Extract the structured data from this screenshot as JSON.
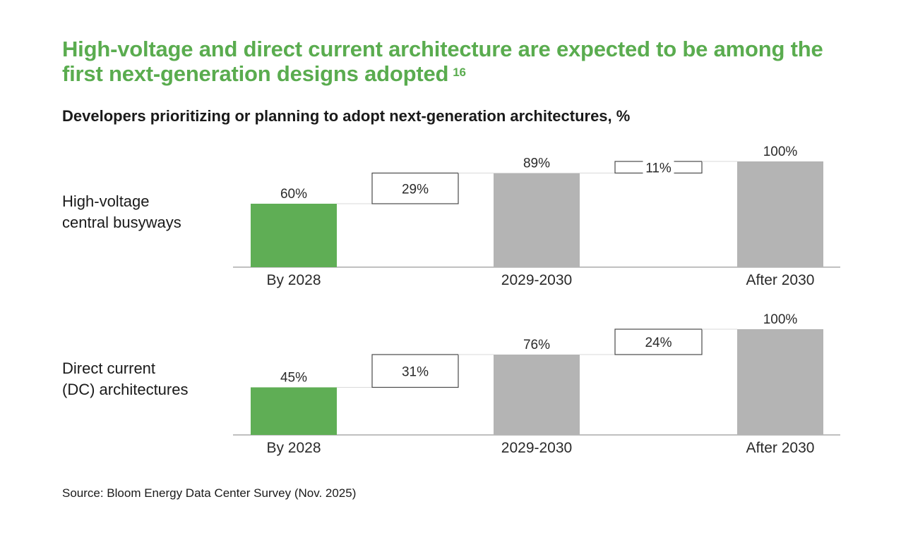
{
  "title": "High-voltage and direct current architecture are expected to be among the first next-generation designs adopted",
  "title_footnote": "16",
  "subtitle": "Developers prioritizing or planning to adopt next-generation architectures, %",
  "source": "Source: Bloom Energy Data Center Survey (Nov. 2025)",
  "colors": {
    "accent": "#5aac4f",
    "bar_green": "#5fae55",
    "bar_gray": "#b4b4b4",
    "axis": "#9a9a9a"
  },
  "chart_data": [
    {
      "type": "bar",
      "label_lines": [
        "High-voltage",
        "central busyways"
      ],
      "categories": [
        "By 2028",
        "2029-2030",
        "After 2030"
      ],
      "values": [
        60,
        89,
        100
      ],
      "increments": [
        29,
        11
      ],
      "value_labels": [
        "60%",
        "89%",
        "100%"
      ],
      "increment_labels": [
        "29%",
        "11%"
      ],
      "ylim": [
        0,
        100
      ]
    },
    {
      "type": "bar",
      "label_lines": [
        "Direct current",
        "(DC) architectures"
      ],
      "categories": [
        "By 2028",
        "2029-2030",
        "After 2030"
      ],
      "values": [
        45,
        76,
        100
      ],
      "increments": [
        31,
        24
      ],
      "value_labels": [
        "45%",
        "76%",
        "100%"
      ],
      "increment_labels": [
        "31%",
        "24%"
      ],
      "ylim": [
        0,
        100
      ]
    }
  ]
}
